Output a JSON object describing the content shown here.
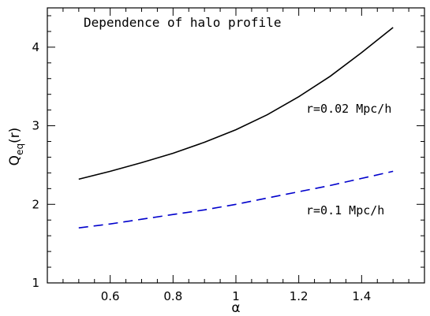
{
  "chart_data": {
    "type": "line",
    "title": "Dependence of halo profile",
    "xlabel": "α",
    "ylabel": {
      "main": "Q",
      "subscript": "eq",
      "suffix": "(r)"
    },
    "xlim": [
      0.4,
      1.6
    ],
    "ylim": [
      1,
      4.5
    ],
    "x_ticks": [
      0.6,
      0.8,
      1,
      1.2,
      1.4
    ],
    "x_tick_labels": [
      "0.6",
      "0.8",
      "1",
      "1.2",
      "1.4"
    ],
    "y_ticks": [
      1,
      2,
      3,
      4
    ],
    "y_tick_labels": [
      "1",
      "2",
      "3",
      "4"
    ],
    "grid": false,
    "series": [
      {
        "name": "r=0.02 Mpc/h",
        "color": "#000000",
        "dash": "solid",
        "x": [
          0.5,
          0.6,
          0.7,
          0.8,
          0.9,
          1.0,
          1.1,
          1.2,
          1.3,
          1.4,
          1.5
        ],
        "y": [
          2.32,
          2.42,
          2.53,
          2.65,
          2.79,
          2.95,
          3.14,
          3.37,
          3.63,
          3.93,
          4.25
        ]
      },
      {
        "name": "r=0.1 Mpc/h",
        "color": "#0000cc",
        "dash": "dashed",
        "x": [
          0.5,
          0.6,
          0.7,
          0.8,
          0.9,
          1.0,
          1.1,
          1.2,
          1.3,
          1.4,
          1.5
        ],
        "y": [
          1.7,
          1.75,
          1.81,
          1.87,
          1.93,
          2.0,
          2.08,
          2.16,
          2.24,
          2.33,
          2.42
        ]
      }
    ],
    "annotations": [
      {
        "text": "r=0.02 Mpc/h",
        "series": 0
      },
      {
        "text": "r=0.1 Mpc/h",
        "series": 1
      }
    ]
  }
}
